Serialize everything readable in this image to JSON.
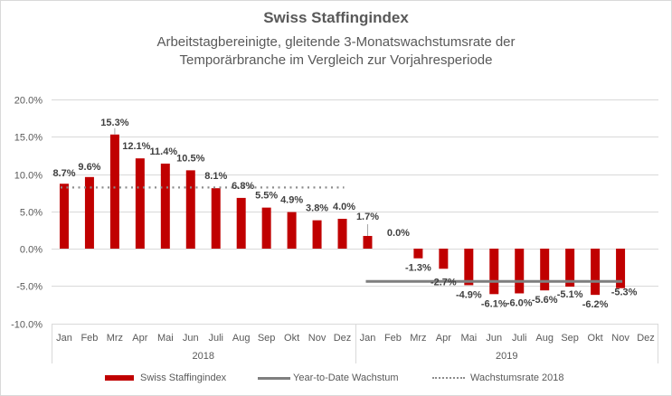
{
  "chart_data": {
    "type": "bar",
    "title": "Swiss Staffingindex",
    "subtitle_lines": [
      "Arbeitstagbereinigte, gleitende 3-Monatswachstumsrate der",
      "Temporärbranche im Vergleich zur Vorjahresperiode"
    ],
    "xlabel": "",
    "ylabel": "",
    "ylim": [
      -10,
      20
    ],
    "yticks": [
      20,
      15,
      10,
      5,
      0,
      -5,
      -10
    ],
    "ytick_labels": [
      "20.0%",
      "15.0%",
      "10.0%",
      "5.0%",
      "0.0%",
      "-5.0%",
      "-10.0%"
    ],
    "grid": true,
    "categories": [
      "Jan",
      "Feb",
      "Mrz",
      "Apr",
      "Mai",
      "Jun",
      "Juli",
      "Aug",
      "Sep",
      "Okt",
      "Nov",
      "Dez",
      "Jan",
      "Feb",
      "Mrz",
      "Apr",
      "Mai",
      "Jun",
      "Juli",
      "Aug",
      "Sep",
      "Okt",
      "Nov",
      "Dez"
    ],
    "groups": [
      {
        "label": "2018",
        "start": 0,
        "count": 12
      },
      {
        "label": "2019",
        "start": 12,
        "count": 12
      }
    ],
    "series": [
      {
        "name": "Swiss Staffingindex",
        "kind": "bar",
        "color": "#c00000",
        "values": [
          8.7,
          9.6,
          15.3,
          12.1,
          11.4,
          10.5,
          8.1,
          6.8,
          5.5,
          4.9,
          3.8,
          4.0,
          1.7,
          0.0,
          -1.3,
          -2.7,
          -4.9,
          -6.1,
          -6.0,
          -5.6,
          -5.1,
          -6.2,
          -5.3,
          null
        ],
        "labels": [
          "8.7%",
          "9.6%",
          "15.3%",
          "12.1%",
          "11.4%",
          "10.5%",
          "8.1%",
          "6.8%",
          "5.5%",
          "4.9%",
          "3.8%",
          "4.0%",
          "1.7%",
          "0.0%",
          "-1.3%",
          "-2.7%",
          "-4.9%",
          "-6.1%",
          "-6.0%",
          "-5.6%",
          "-5.1%",
          "-6.2%",
          "-5.3%",
          ""
        ]
      },
      {
        "name": "Year-to-Date Wachstum",
        "kind": "line",
        "color": "#7f7f7f",
        "value": -4.4,
        "from_index": 12,
        "to_index": 22
      },
      {
        "name": "Wachstumsrate 2018",
        "kind": "dotted-line",
        "color": "#8c8c8c",
        "value": 8.2,
        "from_index": 0,
        "to_index": 11
      }
    ],
    "legend_position": "bottom"
  }
}
